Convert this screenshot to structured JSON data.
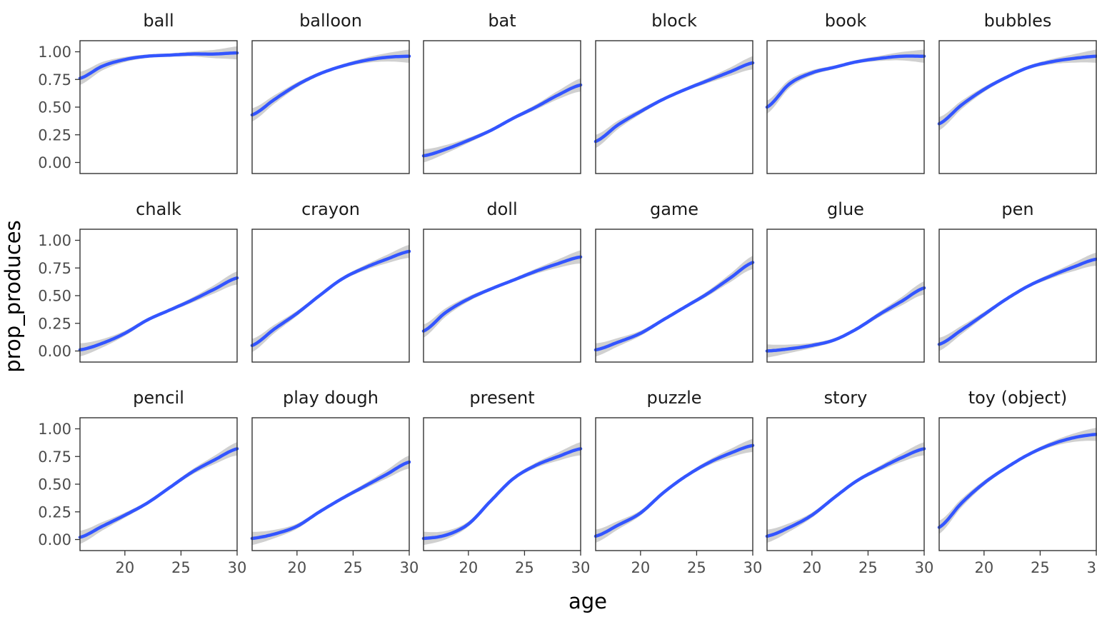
{
  "chart_data": {
    "type": "line",
    "facet_grid": {
      "rows": 3,
      "cols": 6
    },
    "xlabel": "age",
    "ylabel": "prop_produces",
    "xlim": [
      16,
      30
    ],
    "ylim": [
      -0.1,
      1.1
    ],
    "x_ticks": [
      20,
      25,
      30
    ],
    "y_ticks": [
      0,
      0.25,
      0.5,
      0.75,
      1
    ],
    "y_tick_labels": [
      "0.00",
      "0.25",
      "0.50",
      "0.75",
      "1.00"
    ],
    "x_tick_labels": [
      "20",
      "25",
      "30"
    ],
    "grid": false,
    "smooth_color": "#3355FF",
    "ribbon_color": "#C8C8C8",
    "x": [
      16,
      18,
      20,
      22,
      24,
      26,
      28,
      30
    ],
    "series": [
      {
        "name": "ball",
        "values": [
          0.76,
          0.87,
          0.93,
          0.96,
          0.97,
          0.98,
          0.98,
          0.99
        ]
      },
      {
        "name": "balloon",
        "values": [
          0.43,
          0.57,
          0.7,
          0.8,
          0.87,
          0.92,
          0.95,
          0.96
        ]
      },
      {
        "name": "bat",
        "values": [
          0.06,
          0.12,
          0.2,
          0.29,
          0.4,
          0.5,
          0.61,
          0.7
        ]
      },
      {
        "name": "block",
        "values": [
          0.19,
          0.34,
          0.46,
          0.57,
          0.66,
          0.74,
          0.82,
          0.9
        ]
      },
      {
        "name": "book",
        "values": [
          0.5,
          0.71,
          0.81,
          0.86,
          0.91,
          0.94,
          0.96,
          0.96
        ]
      },
      {
        "name": "bubbles",
        "values": [
          0.35,
          0.52,
          0.66,
          0.77,
          0.86,
          0.91,
          0.94,
          0.96
        ]
      },
      {
        "name": "chalk",
        "values": [
          0.01,
          0.07,
          0.16,
          0.28,
          0.37,
          0.46,
          0.56,
          0.66
        ]
      },
      {
        "name": "crayon",
        "values": [
          0.05,
          0.2,
          0.34,
          0.5,
          0.65,
          0.75,
          0.83,
          0.9
        ]
      },
      {
        "name": "doll",
        "values": [
          0.18,
          0.35,
          0.47,
          0.56,
          0.64,
          0.72,
          0.79,
          0.85
        ]
      },
      {
        "name": "game",
        "values": [
          0.01,
          0.08,
          0.16,
          0.28,
          0.4,
          0.52,
          0.66,
          0.8
        ]
      },
      {
        "name": "glue",
        "values": [
          0.0,
          0.02,
          0.05,
          0.1,
          0.2,
          0.33,
          0.45,
          0.57
        ]
      },
      {
        "name": "pen",
        "values": [
          0.06,
          0.19,
          0.33,
          0.47,
          0.59,
          0.68,
          0.76,
          0.83
        ]
      },
      {
        "name": "pencil",
        "values": [
          0.02,
          0.12,
          0.22,
          0.33,
          0.47,
          0.61,
          0.72,
          0.82
        ]
      },
      {
        "name": "play dough",
        "values": [
          0.01,
          0.05,
          0.12,
          0.25,
          0.37,
          0.48,
          0.59,
          0.7
        ]
      },
      {
        "name": "present",
        "values": [
          0.01,
          0.04,
          0.14,
          0.35,
          0.55,
          0.67,
          0.75,
          0.82
        ]
      },
      {
        "name": "puzzle",
        "values": [
          0.03,
          0.13,
          0.24,
          0.42,
          0.57,
          0.69,
          0.78,
          0.85
        ]
      },
      {
        "name": "story",
        "values": [
          0.03,
          0.11,
          0.22,
          0.38,
          0.53,
          0.64,
          0.74,
          0.82
        ]
      },
      {
        "name": "toy (object)",
        "values": [
          0.11,
          0.33,
          0.51,
          0.65,
          0.77,
          0.86,
          0.92,
          0.95
        ]
      }
    ]
  }
}
